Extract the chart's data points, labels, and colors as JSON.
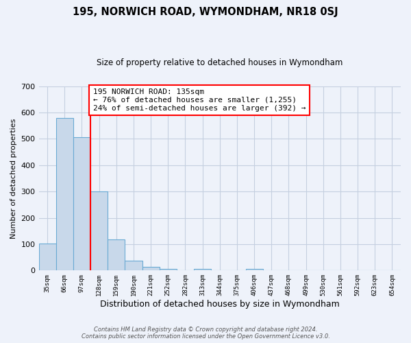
{
  "title": "195, NORWICH ROAD, WYMONDHAM, NR18 0SJ",
  "subtitle": "Size of property relative to detached houses in Wymondham",
  "xlabel": "Distribution of detached houses by size in Wymondham",
  "ylabel": "Number of detached properties",
  "bin_labels": [
    "35sqm",
    "66sqm",
    "97sqm",
    "128sqm",
    "159sqm",
    "190sqm",
    "221sqm",
    "252sqm",
    "282sqm",
    "313sqm",
    "344sqm",
    "375sqm",
    "406sqm",
    "437sqm",
    "468sqm",
    "499sqm",
    "530sqm",
    "561sqm",
    "592sqm",
    "623sqm",
    "654sqm"
  ],
  "bar_heights": [
    103,
    578,
    505,
    300,
    118,
    38,
    14,
    5,
    0,
    5,
    0,
    0,
    5,
    0,
    0,
    0,
    0,
    0,
    0,
    0,
    0
  ],
  "bar_color": "#c8d8ea",
  "bar_edgecolor": "#6aaad4",
  "vline_x_index": 3,
  "vline_color": "red",
  "annotation_text": "195 NORWICH ROAD: 135sqm\n← 76% of detached houses are smaller (1,255)\n24% of semi-detached houses are larger (392) →",
  "annotation_box_color": "white",
  "annotation_box_edgecolor": "red",
  "ylim": [
    0,
    700
  ],
  "yticks": [
    0,
    100,
    200,
    300,
    400,
    500,
    600,
    700
  ],
  "footnote": "Contains HM Land Registry data © Crown copyright and database right 2024.\nContains public sector information licensed under the Open Government Licence v3.0.",
  "background_color": "#eef2fa",
  "grid_color": "#c5cfe0"
}
